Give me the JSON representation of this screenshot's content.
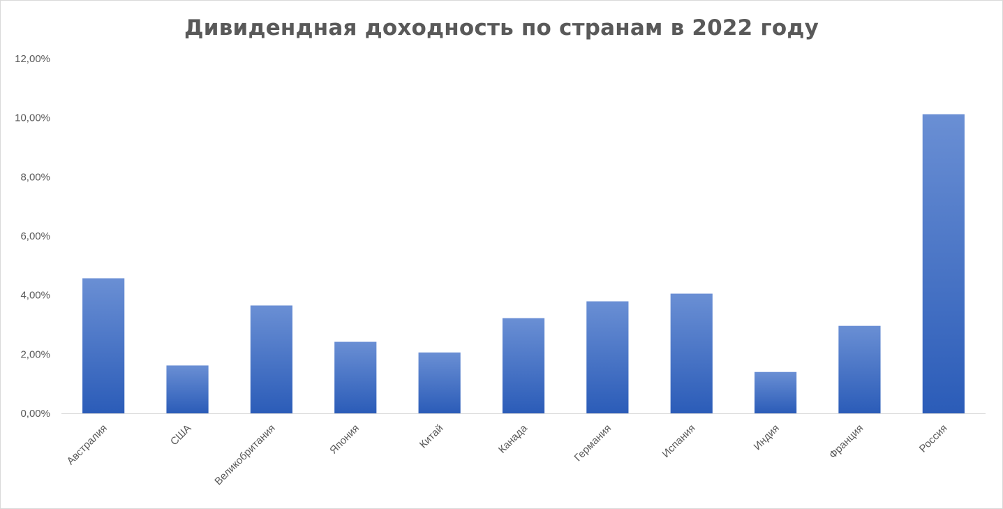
{
  "chart_data": {
    "type": "bar",
    "title": "Дивидендная доходность по странам в 2022 году",
    "categories": [
      "Австралия",
      "США",
      "Великобритания",
      "Япония",
      "Китай",
      "Канада",
      "Германия",
      "Испания",
      "Индия",
      "Франция",
      "Россия"
    ],
    "values": [
      4.57,
      1.62,
      3.65,
      2.42,
      2.06,
      3.22,
      3.79,
      4.05,
      1.4,
      2.96,
      10.12
    ],
    "ylim": [
      0,
      12
    ],
    "yticks": [
      "0,00%",
      "2,00%",
      "4,00%",
      "6,00%",
      "8,00%",
      "10,00%",
      "12,00%"
    ],
    "grid": false,
    "legend": "none",
    "colors": {
      "bar_top": "#6a8fd4",
      "bar_bottom": "#2b5cb8",
      "axis": "#d9d9d9",
      "text": "#595959"
    }
  }
}
